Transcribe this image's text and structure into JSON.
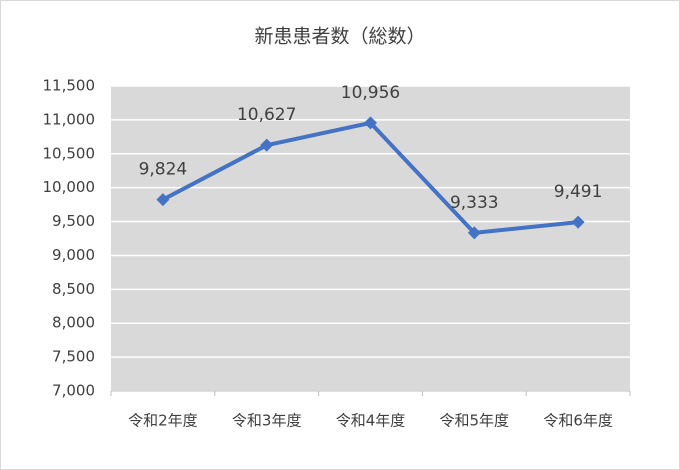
{
  "chart_data": {
    "type": "line",
    "title": "新患患者数（総数）",
    "categories": [
      "令和2年度",
      "令和3年度",
      "令和4年度",
      "令和5年度",
      "令和6年度"
    ],
    "series": [
      {
        "name": "新患患者数",
        "color": "#4472c4",
        "values": [
          9824,
          10627,
          10956,
          9333,
          9491
        ],
        "value_labels": [
          "9,824",
          "10,627",
          "10,956",
          "9,333",
          "9,491"
        ]
      }
    ],
    "ylim": [
      7000,
      11500
    ],
    "yticks": [
      {
        "value": 7000,
        "label": "7,000"
      },
      {
        "value": 7500,
        "label": "7,500"
      },
      {
        "value": 8000,
        "label": "8,000"
      },
      {
        "value": 8500,
        "label": "8,500"
      },
      {
        "value": 9000,
        "label": "9,000"
      },
      {
        "value": 9500,
        "label": "9,500"
      },
      {
        "value": 10000,
        "label": "10,000"
      },
      {
        "value": 10500,
        "label": "10,500"
      },
      {
        "value": 11000,
        "label": "11,000"
      },
      {
        "value": 11500,
        "label": "11,500"
      }
    ],
    "grid": true
  }
}
